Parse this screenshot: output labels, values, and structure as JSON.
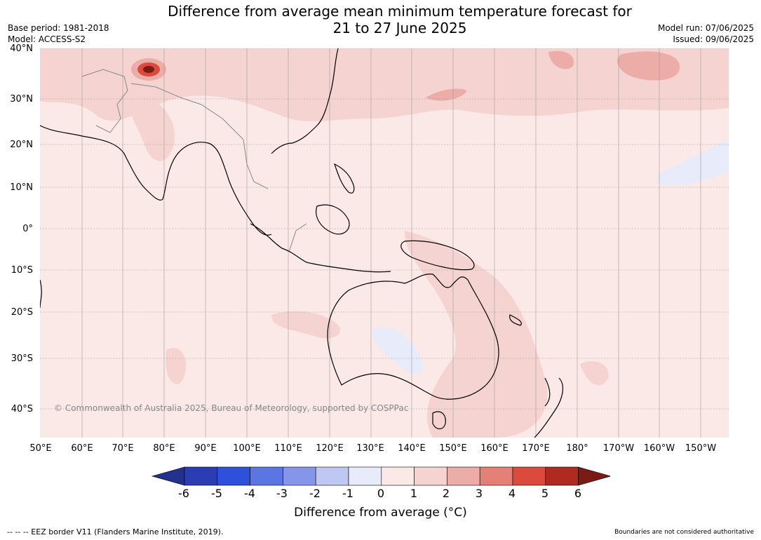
{
  "header": {
    "title_line1": "Difference from average mean minimum temperature forecast for",
    "title_line2": "21 to 27 June 2025",
    "base_period": "Base period: 1981-2018",
    "model": "Model: ACCESS-S2",
    "model_run": "Model run: 07/06/2025",
    "issued": "Issued: 09/06/2025"
  },
  "map": {
    "copyright": "© Commonwealth of Australia 2025, Bureau of Meteorology, supported by COSPPac",
    "lat_labels": [
      "40°N",
      "30°N",
      "20°N",
      "10°N",
      "0°",
      "10°S",
      "20°S",
      "30°S",
      "40°S"
    ],
    "lon_labels": [
      "50°E",
      "60°E",
      "70°E",
      "80°E",
      "90°E",
      "100°E",
      "110°E",
      "120°E",
      "130°E",
      "140°E",
      "150°E",
      "160°E",
      "170°E",
      "180°",
      "170°W",
      "160°W",
      "150°W"
    ],
    "background_color": "#fbe9e7",
    "coastline_color": "#000000",
    "border_color": "#888888"
  },
  "colorbar": {
    "ticks": [
      "-6",
      "-5",
      "-4",
      "-3",
      "-2",
      "-1",
      "0",
      "1",
      "2",
      "3",
      "4",
      "5",
      "6"
    ],
    "colors": [
      "#23318e",
      "#2a3db5",
      "#2f4fdd",
      "#5b75e4",
      "#8596ea",
      "#bfc7f3",
      "#e8ebfa",
      "#fbe9e7",
      "#f4d3d0",
      "#ecaca8",
      "#e58077",
      "#db4a3c",
      "#b02a22",
      "#7a1a15"
    ],
    "label": "Difference from average (°C)"
  },
  "footer": {
    "eez_legend": "--  --  -- EEZ border V11 (Flanders Marine Institute, 2019).",
    "disclaimer": "Boundaries are not considered authoritative"
  }
}
